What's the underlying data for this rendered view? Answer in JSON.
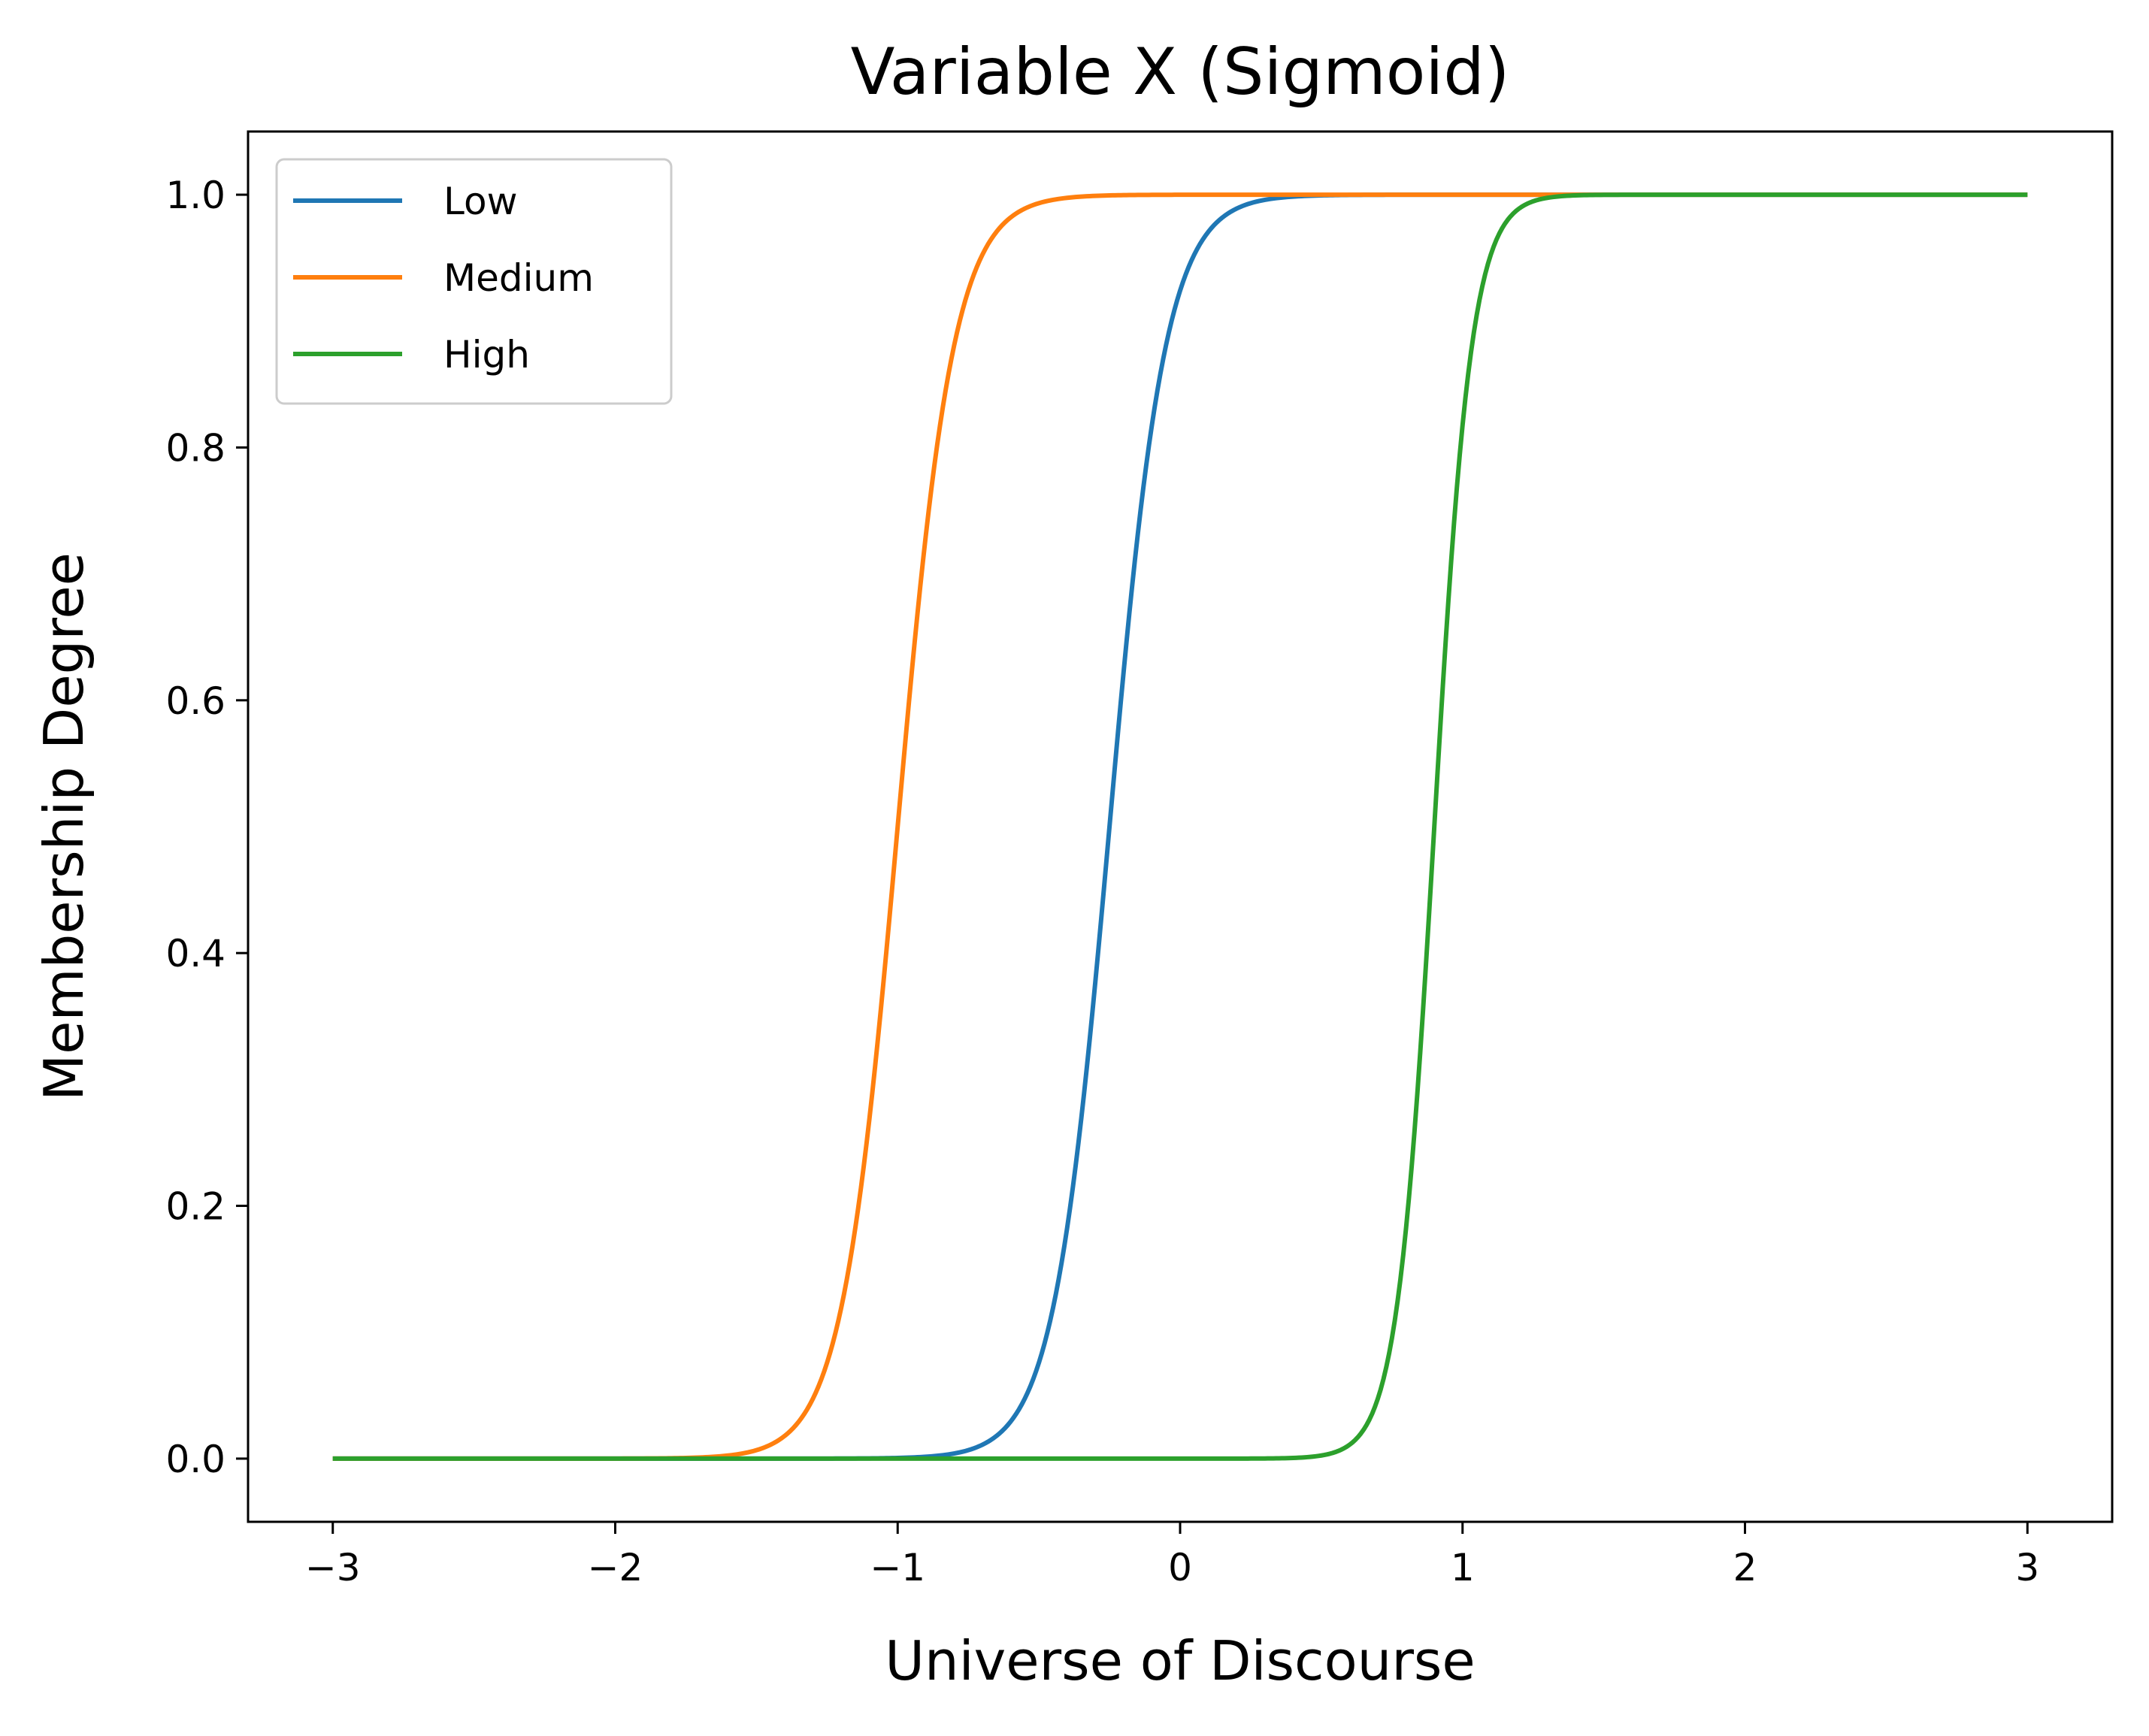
{
  "chart_data": {
    "type": "line",
    "title": "Variable X (Sigmoid)",
    "xlabel": "Universe of Discourse",
    "ylabel": "Membership Degree",
    "xlim": [
      -3.3,
      3.3
    ],
    "ylim": [
      -0.05,
      1.05
    ],
    "x_range": [
      -3,
      3
    ],
    "xticks": [
      -3,
      -2,
      -1,
      0,
      1,
      2,
      3
    ],
    "xtick_labels": [
      "−3",
      "−2",
      "−1",
      "0",
      "1",
      "2",
      "3"
    ],
    "yticks": [
      0.0,
      0.2,
      0.4,
      0.6,
      0.8,
      1.0
    ],
    "ytick_labels": [
      "0.0",
      "0.2",
      "0.4",
      "0.6",
      "0.8",
      "1.0"
    ],
    "grid": false,
    "legend_position": "top-left",
    "series": [
      {
        "name": "Low",
        "color": "#1f77b4",
        "function": "sigmoid",
        "center": -0.25,
        "slope": 10
      },
      {
        "name": "Medium",
        "color": "#ff7f0e",
        "function": "sigmoid",
        "center": -1.0,
        "slope": 10
      },
      {
        "name": "High",
        "color": "#2ca02c",
        "function": "sigmoid",
        "center": 0.9,
        "slope": 15
      }
    ]
  }
}
